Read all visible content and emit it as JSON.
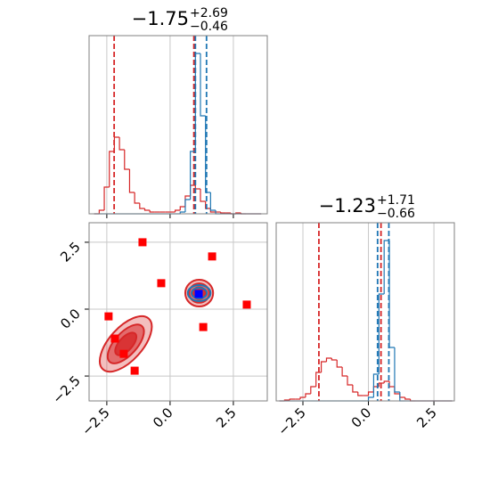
{
  "chart_data": [
    {
      "type": "histogram",
      "title": {
        "value": "−1.75",
        "upper": "+2.69",
        "lower": "−0.46"
      },
      "xlim": [
        -3.2,
        3.84
      ],
      "ylim": [
        0,
        1
      ],
      "xticks": [
        -2.5,
        0,
        2.5
      ],
      "grid": true,
      "bins": [
        -3.0,
        -2.8,
        -2.6,
        -2.4,
        -2.2,
        -2.0,
        -1.8,
        -1.6,
        -1.4,
        -1.2,
        -1.0,
        -0.8,
        -0.6,
        -0.4,
        -0.2,
        0,
        0.2,
        0.4,
        0.6,
        0.8,
        1.0,
        1.2,
        1.4,
        1.6,
        1.8,
        2.0,
        2.2,
        2.4,
        2.6,
        2.8,
        3.0,
        3.2,
        3.4,
        3.6
      ],
      "series": [
        {
          "color": "#d62728",
          "values": [
            0,
            0.02,
            0.15,
            0.35,
            0.43,
            0.36,
            0.25,
            0.12,
            0.06,
            0.03,
            0.02,
            0.01,
            0.01,
            0.01,
            0.01,
            0.01,
            0.02,
            0.04,
            0.1,
            0.16,
            0.14,
            0.07,
            0.03,
            0.01,
            0.01,
            0.005,
            0.005,
            0,
            0.005,
            0,
            0,
            0,
            0
          ],
          "quantiles": [
            -2.21,
            0.94
          ]
        },
        {
          "color": "#1f77b4",
          "values": [
            0,
            0,
            0,
            0,
            0,
            0,
            0,
            0,
            0,
            0,
            0,
            0,
            0,
            0,
            0,
            0,
            0,
            0.01,
            0.08,
            0.35,
            0.9,
            0.55,
            0.12,
            0.02,
            0,
            0,
            0,
            0,
            0,
            0,
            0,
            0,
            0
          ],
          "quantiles": [
            1.0,
            1.44
          ]
        }
      ]
    },
    {
      "type": "corner-scatter",
      "xlim": [
        -3.2,
        3.84
      ],
      "ylim": [
        -3.43,
        3.23
      ],
      "grid": true,
      "xticks": [
        {
          "value": -2.5,
          "label": "−2.5"
        },
        {
          "value": 0,
          "label": "0.0"
        },
        2.5
      ],
      "yticks": [
        {
          "value": -2.5,
          "label": "−2.5"
        },
        {
          "value": 0,
          "label": "0.0"
        },
        2.5
      ],
      "contours": [
        {
          "color": "#d62728",
          "center": [
            -1.75,
            -1.3
          ],
          "angle": -48,
          "levels": [
            [
              1.35,
              0.62
            ],
            [
              0.95,
              0.42
            ],
            [
              0.55,
              0.25
            ]
          ]
        },
        {
          "color": "#d62728",
          "center": [
            1.15,
            0.6
          ],
          "angle": 0,
          "levels": [
            [
              0.55,
              0.5
            ],
            [
              0.4,
              0.36
            ],
            [
              0.25,
              0.22
            ]
          ]
        },
        {
          "color": "#1f77b4",
          "center": [
            1.15,
            0.6
          ],
          "angle": 0,
          "levels": [
            [
              0.45,
              0.3
            ],
            [
              0.3,
              0.2
            ]
          ]
        }
      ],
      "series": [
        {
          "color": "#ff0000",
          "x": [
            -1.09,
            1.66,
            -0.35,
            3.03,
            -2.43,
            1.31,
            -2.18,
            -1.83,
            -1.4
          ],
          "y": [
            2.5,
            1.97,
            0.97,
            0.17,
            -0.27,
            -0.67,
            -1.1,
            -1.67,
            -2.3
          ]
        },
        {
          "color": "#0000ff",
          "x": [
            1.13
          ],
          "y": [
            0.57
          ]
        }
      ]
    },
    {
      "type": "histogram",
      "title": {
        "value": "−1.23",
        "upper": "+1.71",
        "lower": "−0.66"
      },
      "xlim": [
        -3.52,
        3.28
      ],
      "ylim": [
        0,
        1
      ],
      "grid": true,
      "xticks": [
        {
          "value": -2.5,
          "label": "−2.5"
        },
        {
          "value": 0,
          "label": "0.0"
        },
        2.5
      ],
      "bins": [
        -3.4,
        -3.2,
        -3.0,
        -2.8,
        -2.6,
        -2.4,
        -2.2,
        -2.0,
        -1.8,
        -1.6,
        -1.4,
        -1.2,
        -1.0,
        -0.8,
        -0.6,
        -0.4,
        -0.2,
        0,
        0.2,
        0.4,
        0.6,
        0.8,
        1.0,
        1.2,
        1.4,
        1.6,
        1.8,
        2.0,
        2.2,
        2.4,
        2.6,
        2.8,
        3.0,
        3.2
      ],
      "series": [
        {
          "color": "#d62728",
          "values": [
            0,
            0.005,
            0.01,
            0.01,
            0.02,
            0.04,
            0.08,
            0.16,
            0.22,
            0.24,
            0.23,
            0.19,
            0.14,
            0.09,
            0.05,
            0.03,
            0.03,
            0.05,
            0.08,
            0.1,
            0.11,
            0.08,
            0.04,
            0.02,
            0.01,
            0,
            0,
            0,
            0,
            0,
            0,
            0,
            0
          ],
          "quantiles": [
            -1.89,
            0.48
          ]
        },
        {
          "color": "#1f77b4",
          "values": [
            0,
            0,
            0,
            0,
            0,
            0,
            0,
            0,
            0,
            0,
            0,
            0,
            0,
            0,
            0,
            0,
            0,
            0.02,
            0.15,
            0.6,
            0.9,
            0.3,
            0.05,
            0,
            0,
            0,
            0,
            0,
            0,
            0,
            0,
            0,
            0
          ],
          "quantiles": [
            0.35,
            0.78
          ]
        }
      ]
    }
  ]
}
